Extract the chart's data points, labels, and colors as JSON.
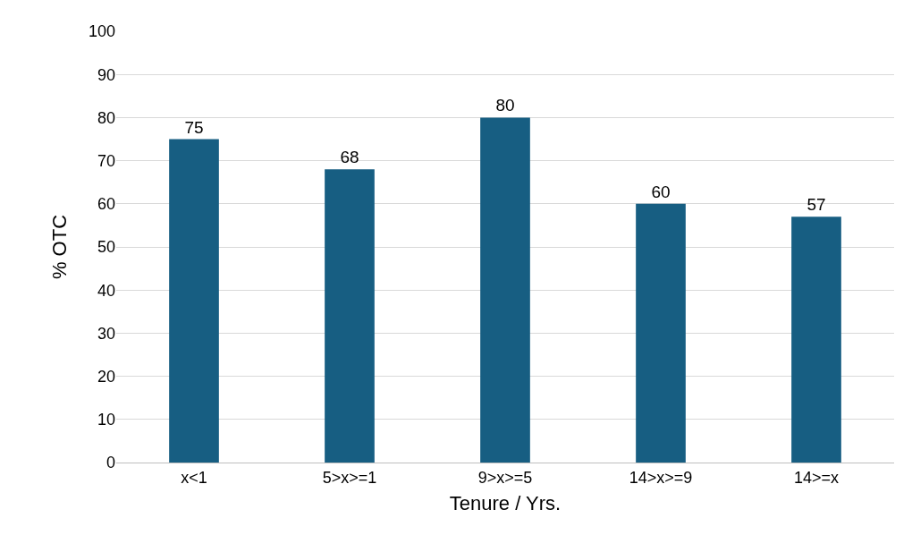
{
  "chart_data": {
    "type": "bar",
    "xlabel": "Tenure / Yrs.",
    "ylabel": "% OTC",
    "categories": [
      "x<1",
      "5>x>=1",
      "9>x>=5",
      "14>x>=9",
      "14>=x"
    ],
    "values": [
      75,
      68,
      80,
      60,
      57
    ],
    "color": "#175e82",
    "ylim": [
      0,
      100
    ],
    "yticks": [
      0,
      10,
      20,
      30,
      40,
      50,
      60,
      70,
      80,
      90,
      100
    ],
    "grid": "y",
    "data_labels": true,
    "legend": false
  }
}
